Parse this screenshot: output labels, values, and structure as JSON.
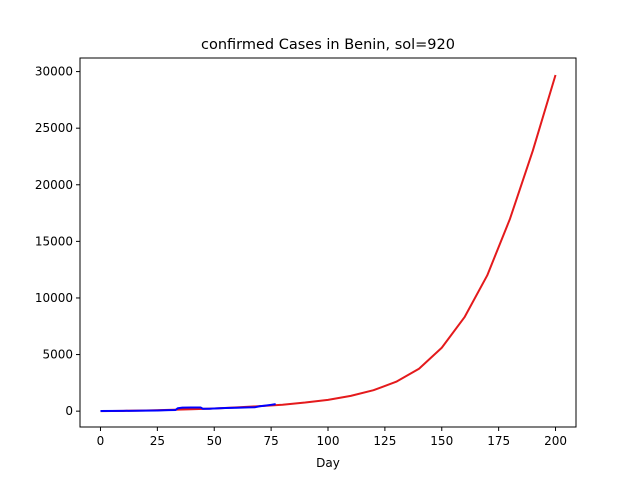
{
  "chart_data": {
    "type": "line",
    "title": "confirmed Cases in Benin, sol=920",
    "xlabel": "Day",
    "ylabel": "",
    "xlim": [
      -9,
      209
    ],
    "ylim": [
      -1400,
      31200
    ],
    "x_ticks": [
      0,
      25,
      50,
      75,
      100,
      125,
      150,
      175,
      200
    ],
    "x_tick_labels": [
      "0",
      "25",
      "50",
      "75",
      "100",
      "125",
      "150",
      "175",
      "200"
    ],
    "y_ticks": [
      0,
      5000,
      10000,
      15000,
      20000,
      25000,
      30000
    ],
    "y_tick_labels": [
      "0",
      "5000",
      "10000",
      "15000",
      "20000",
      "25000",
      "30000"
    ],
    "grid": false,
    "series": [
      {
        "color": "#e41a1c",
        "x": [
          0,
          10,
          20,
          30,
          40,
          50,
          60,
          70,
          80,
          90,
          100,
          110,
          120,
          130,
          140,
          150,
          160,
          170,
          180,
          190,
          200
        ],
        "y": [
          5,
          25,
          60,
          110,
          170,
          240,
          330,
          440,
          570,
          760,
          1000,
          1350,
          1850,
          2600,
          3750,
          5600,
          8300,
          12000,
          17000,
          23000,
          29700
        ]
      },
      {
        "color": "#0000ff",
        "x": [
          0,
          10,
          20,
          25,
          30,
          33,
          34,
          36,
          40,
          44,
          45,
          48,
          50,
          55,
          60,
          65,
          68,
          70,
          72,
          75,
          77
        ],
        "y": [
          10,
          25,
          50,
          60,
          90,
          100,
          260,
          310,
          320,
          320,
          210,
          210,
          240,
          280,
          300,
          330,
          350,
          430,
          480,
          560,
          620
        ]
      }
    ]
  }
}
